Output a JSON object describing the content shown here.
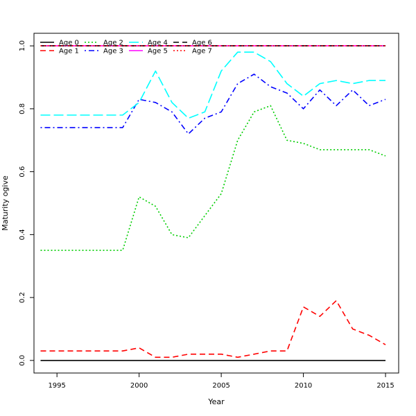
{
  "chart_data": {
    "type": "line",
    "title": "",
    "xlabel": "Year",
    "ylabel": "Maturity ogive",
    "xlim": [
      1993.6,
      2015.8
    ],
    "ylim": [
      -0.04,
      1.04
    ],
    "xticks": [
      1995,
      2000,
      2005,
      2010,
      2015
    ],
    "xtick_labels": [
      "1995",
      "2000",
      "2005",
      "2010",
      "2015"
    ],
    "yticks": [
      0.0,
      0.2,
      0.4,
      0.6,
      0.8,
      1.0
    ],
    "ytick_labels": [
      "0.0",
      "0.2",
      "0.4",
      "0.6",
      "0.8",
      "1.0"
    ],
    "grid": false,
    "legend_position": "top-left",
    "x": [
      1994,
      1995,
      1996,
      1997,
      1998,
      1999,
      2000,
      2001,
      2002,
      2003,
      2004,
      2005,
      2006,
      2007,
      2008,
      2009,
      2010,
      2011,
      2012,
      2013,
      2014,
      2015
    ],
    "series": [
      {
        "name": "Age 0",
        "color": "#000000",
        "dash": "solid",
        "values": [
          0,
          0,
          0,
          0,
          0,
          0,
          0,
          0,
          0,
          0,
          0,
          0,
          0,
          0,
          0,
          0,
          0,
          0,
          0,
          0,
          0,
          0
        ]
      },
      {
        "name": "Age 1",
        "color": "#ff0000",
        "dash": "dashed",
        "values": [
          0.03,
          0.03,
          0.03,
          0.03,
          0.03,
          0.03,
          0.04,
          0.01,
          0.01,
          0.02,
          0.02,
          0.02,
          0.01,
          0.02,
          0.03,
          0.03,
          0.17,
          0.14,
          0.19,
          0.1,
          0.08,
          0.05
        ]
      },
      {
        "name": "Age 2",
        "color": "#00cd00",
        "dash": "dotted",
        "values": [
          0.35,
          0.35,
          0.35,
          0.35,
          0.35,
          0.35,
          0.52,
          0.49,
          0.4,
          0.39,
          0.46,
          0.53,
          0.7,
          0.79,
          0.81,
          0.7,
          0.69,
          0.67,
          0.67,
          0.67,
          0.67,
          0.65
        ]
      },
      {
        "name": "Age 3",
        "color": "#0000ff",
        "dash": "dotdash",
        "values": [
          0.74,
          0.74,
          0.74,
          0.74,
          0.74,
          0.74,
          0.83,
          0.82,
          0.79,
          0.72,
          0.77,
          0.79,
          0.88,
          0.91,
          0.87,
          0.85,
          0.8,
          0.86,
          0.81,
          0.86,
          0.81,
          0.83
        ]
      },
      {
        "name": "Age 4",
        "color": "#00ffff",
        "dash": "longdash",
        "values": [
          0.78,
          0.78,
          0.78,
          0.78,
          0.78,
          0.78,
          0.82,
          0.92,
          0.82,
          0.77,
          0.79,
          0.92,
          0.98,
          0.98,
          0.95,
          0.88,
          0.84,
          0.88,
          0.89,
          0.88,
          0.89,
          0.89
        ]
      },
      {
        "name": "Age 5",
        "color": "#ff00ff",
        "dash": "solid",
        "values": [
          1,
          1,
          1,
          1,
          1,
          1,
          1,
          1,
          1,
          1,
          1,
          1,
          1,
          1,
          1,
          1,
          1,
          1,
          1,
          1,
          1,
          1
        ]
      },
      {
        "name": "Age 6",
        "color": "#000000",
        "dash": "dashed",
        "values": [
          1,
          1,
          1,
          1,
          1,
          1,
          1,
          1,
          1,
          1,
          1,
          1,
          1,
          1,
          1,
          1,
          1,
          1,
          1,
          1,
          1,
          1
        ]
      },
      {
        "name": "Age 7",
        "color": "#ff0000",
        "dash": "dotted",
        "values": [
          1,
          1,
          1,
          1,
          1,
          1,
          1,
          1,
          1,
          1,
          1,
          1,
          1,
          1,
          1,
          1,
          1,
          1,
          1,
          1,
          1,
          1
        ]
      }
    ]
  }
}
